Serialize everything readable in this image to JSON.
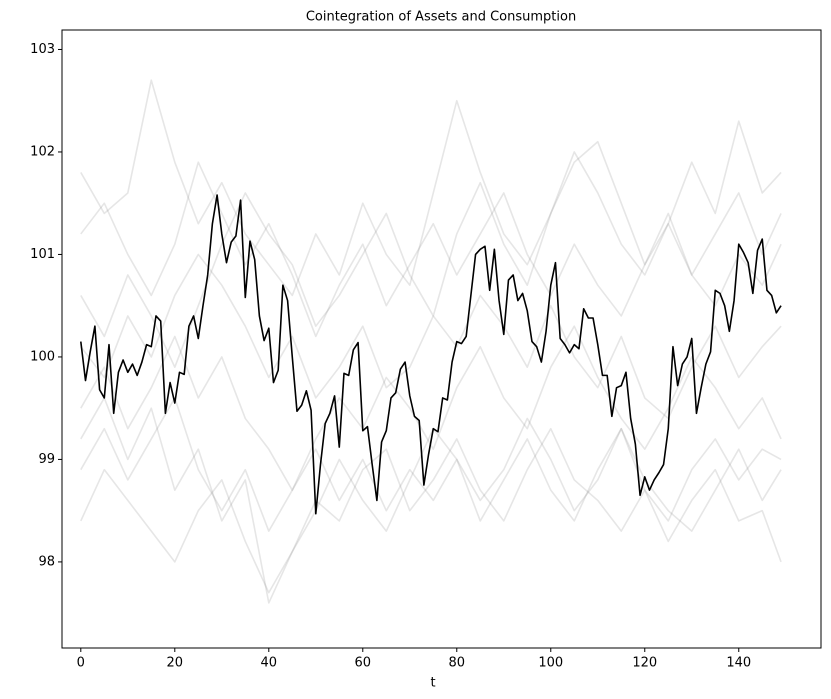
{
  "chart_data": {
    "type": "line",
    "title": "Cointegration of Assets and Consumption",
    "xlabel": "t",
    "xlim": [
      -4,
      157.5
    ],
    "ylim": [
      97.16,
      103.19
    ],
    "xticks": [
      0,
      20,
      40,
      60,
      80,
      100,
      120,
      140
    ],
    "yticks": [
      98,
      99,
      100,
      101,
      102,
      103
    ],
    "series": [
      {
        "color": "#808080",
        "opacity": 0.2,
        "x": [
          0,
          5,
          10,
          15,
          20,
          25,
          30,
          35,
          40,
          45,
          50,
          55,
          60,
          65,
          70,
          75,
          80,
          85,
          90,
          95,
          100,
          105,
          110,
          115,
          120,
          125,
          130,
          135,
          140,
          145,
          149
        ],
        "values": [
          101.8,
          101.4,
          101.6,
          102.7,
          101.9,
          101.3,
          101.7,
          101.2,
          100.9,
          100.6,
          101.2,
          100.8,
          101.5,
          101.0,
          100.7,
          101.6,
          102.5,
          101.8,
          101.2,
          100.9,
          101.4,
          102.0,
          101.6,
          101.1,
          100.8,
          101.3,
          101.9,
          101.4,
          102.3,
          101.6,
          101.8
        ]
      },
      {
        "color": "#808080",
        "opacity": 0.2,
        "x": [
          0,
          5,
          10,
          15,
          20,
          25,
          30,
          35,
          40,
          45,
          50,
          55,
          60,
          65,
          70,
          75,
          80,
          85,
          90,
          95,
          100,
          105,
          110,
          115,
          120,
          125,
          130,
          135,
          140,
          145,
          149
        ],
        "values": [
          98.4,
          98.9,
          98.6,
          98.3,
          98.0,
          98.5,
          98.8,
          98.2,
          97.7,
          98.1,
          98.6,
          98.4,
          98.9,
          99.1,
          98.5,
          98.8,
          99.2,
          98.7,
          98.4,
          98.9,
          99.3,
          98.8,
          98.6,
          98.3,
          98.7,
          98.2,
          98.6,
          98.9,
          98.4,
          98.5,
          98.0
        ]
      },
      {
        "color": "#808080",
        "opacity": 0.2,
        "x": [
          0,
          5,
          10,
          15,
          20,
          25,
          30,
          35,
          40,
          45,
          50,
          55,
          60,
          65,
          70,
          75,
          80,
          85,
          90,
          95,
          100,
          105,
          110,
          115,
          120,
          125,
          130,
          135,
          140,
          145,
          149
        ],
        "values": [
          100.6,
          100.2,
          100.8,
          100.4,
          99.9,
          100.5,
          101.1,
          101.6,
          101.2,
          100.9,
          100.3,
          100.6,
          101.0,
          101.4,
          100.8,
          100.4,
          101.2,
          101.7,
          101.1,
          100.7,
          101.4,
          101.9,
          102.1,
          101.5,
          100.9,
          101.3,
          100.8,
          101.2,
          101.6,
          101.0,
          101.4
        ]
      },
      {
        "color": "#808080",
        "opacity": 0.2,
        "x": [
          0,
          5,
          10,
          15,
          20,
          25,
          30,
          35,
          40,
          45,
          50,
          55,
          60,
          65,
          70,
          75,
          80,
          85,
          90,
          95,
          100,
          105,
          110,
          115,
          120,
          125,
          130,
          135,
          140,
          145,
          149
        ],
        "values": [
          99.2,
          99.6,
          99.0,
          99.5,
          98.7,
          99.1,
          98.4,
          98.8,
          97.6,
          98.1,
          98.5,
          99.0,
          98.6,
          98.3,
          98.8,
          99.3,
          99.0,
          98.6,
          98.9,
          99.4,
          99.0,
          98.5,
          98.8,
          99.3,
          98.7,
          98.4,
          98.9,
          99.2,
          98.8,
          99.1,
          99.0
        ]
      },
      {
        "color": "#808080",
        "opacity": 0.2,
        "x": [
          0,
          5,
          10,
          15,
          20,
          25,
          30,
          35,
          40,
          45,
          50,
          55,
          60,
          65,
          70,
          75,
          80,
          85,
          90,
          95,
          100,
          105,
          110,
          115,
          120,
          125,
          130,
          135,
          140,
          145,
          149
        ],
        "values": [
          100.1,
          99.8,
          100.4,
          100.0,
          100.6,
          101.0,
          100.7,
          100.3,
          99.8,
          100.2,
          99.6,
          99.9,
          100.3,
          99.7,
          99.9,
          100.4,
          100.1,
          100.6,
          100.3,
          99.9,
          100.5,
          100.0,
          99.7,
          100.2,
          99.6,
          99.4,
          99.9,
          100.3,
          99.8,
          100.1,
          100.3
        ]
      },
      {
        "color": "#808080",
        "opacity": 0.2,
        "x": [
          0,
          5,
          10,
          15,
          20,
          25,
          30,
          35,
          40,
          45,
          50,
          55,
          60,
          65,
          70,
          75,
          80,
          85,
          90,
          95,
          100,
          105,
          110,
          115,
          120,
          125,
          130,
          135,
          140,
          145,
          149
        ],
        "values": [
          99.5,
          99.9,
          99.3,
          99.7,
          100.2,
          99.6,
          100.0,
          99.4,
          99.1,
          98.7,
          99.2,
          99.6,
          99.3,
          99.8,
          99.5,
          99.1,
          99.7,
          100.1,
          99.6,
          99.3,
          99.9,
          100.3,
          99.8,
          99.4,
          99.1,
          99.5,
          100.0,
          99.7,
          99.3,
          99.6,
          99.2
        ]
      },
      {
        "color": "#808080",
        "opacity": 0.2,
        "x": [
          0,
          5,
          10,
          15,
          20,
          25,
          30,
          35,
          40,
          45,
          50,
          55,
          60,
          65,
          70,
          75,
          80,
          85,
          90,
          95,
          100,
          105,
          110,
          115,
          120,
          125,
          130,
          135,
          140,
          145,
          149
        ],
        "values": [
          101.2,
          101.5,
          101.0,
          100.6,
          101.1,
          101.9,
          101.4,
          100.9,
          101.3,
          100.8,
          100.2,
          100.7,
          101.1,
          100.5,
          100.9,
          101.3,
          100.8,
          101.2,
          101.6,
          101.0,
          100.6,
          101.1,
          100.7,
          100.4,
          100.9,
          101.4,
          100.8,
          100.5,
          101.0,
          100.7,
          101.1
        ]
      },
      {
        "color": "#808080",
        "opacity": 0.2,
        "x": [
          0,
          5,
          10,
          15,
          20,
          25,
          30,
          35,
          40,
          45,
          50,
          55,
          60,
          65,
          70,
          75,
          80,
          85,
          90,
          95,
          100,
          105,
          110,
          115,
          120,
          125,
          130,
          135,
          140,
          145,
          149
        ],
        "values": [
          98.9,
          99.3,
          98.8,
          99.2,
          99.6,
          98.9,
          98.5,
          98.9,
          98.3,
          98.7,
          99.1,
          98.6,
          99.0,
          98.5,
          98.9,
          98.6,
          99.0,
          98.4,
          98.8,
          99.2,
          98.7,
          98.4,
          98.9,
          99.3,
          98.8,
          98.5,
          98.3,
          98.7,
          99.1,
          98.6,
          98.9
        ]
      },
      {
        "color": "#000000",
        "opacity": 1,
        "x": [
          0,
          1,
          2,
          3,
          4,
          5,
          6,
          7,
          8,
          9,
          10,
          11,
          12,
          13,
          14,
          15,
          16,
          17,
          18,
          19,
          20,
          21,
          22,
          23,
          24,
          25,
          26,
          27,
          28,
          29,
          30,
          31,
          32,
          33,
          34,
          35,
          36,
          37,
          38,
          39,
          40,
          41,
          42,
          43,
          44,
          45,
          46,
          47,
          48,
          49,
          50,
          51,
          52,
          53,
          54,
          55,
          56,
          57,
          58,
          59,
          60,
          61,
          62,
          63,
          64,
          65,
          66,
          67,
          68,
          69,
          70,
          71,
          72,
          73,
          74,
          75,
          76,
          77,
          78,
          79,
          80,
          81,
          82,
          83,
          84,
          85,
          86,
          87,
          88,
          89,
          90,
          91,
          92,
          93,
          94,
          95,
          96,
          97,
          98,
          99,
          100,
          101,
          102,
          103,
          104,
          105,
          106,
          107,
          108,
          109,
          110,
          111,
          112,
          113,
          114,
          115,
          116,
          117,
          118,
          119,
          120,
          121,
          122,
          123,
          124,
          125,
          126,
          127,
          128,
          129,
          130,
          131,
          132,
          133,
          134,
          135,
          136,
          137,
          138,
          139,
          140,
          141,
          142,
          143,
          144,
          145,
          146,
          147,
          148,
          149
        ],
        "values": [
          100.15,
          99.77,
          100.05,
          100.3,
          99.68,
          99.6,
          100.12,
          99.45,
          99.85,
          99.97,
          99.85,
          99.93,
          99.82,
          99.95,
          100.12,
          100.1,
          100.4,
          100.35,
          99.45,
          99.75,
          99.55,
          99.85,
          99.83,
          100.3,
          100.4,
          100.18,
          100.5,
          100.8,
          101.3,
          101.58,
          101.2,
          100.92,
          101.12,
          101.18,
          101.53,
          100.58,
          101.13,
          100.95,
          100.4,
          100.16,
          100.28,
          99.75,
          99.87,
          100.7,
          100.55,
          100.0,
          99.47,
          99.53,
          99.67,
          99.48,
          98.47,
          98.95,
          99.35,
          99.45,
          99.62,
          99.12,
          99.84,
          99.82,
          100.07,
          100.14,
          99.28,
          99.32,
          98.95,
          98.6,
          99.17,
          99.28,
          99.6,
          99.65,
          99.88,
          99.95,
          99.62,
          99.42,
          99.38,
          98.75,
          99.05,
          99.3,
          99.27,
          99.6,
          99.58,
          99.95,
          100.15,
          100.13,
          100.2,
          100.6,
          101.0,
          101.05,
          101.08,
          100.65,
          101.05,
          100.55,
          100.22,
          100.75,
          100.8,
          100.55,
          100.62,
          100.45,
          100.15,
          100.1,
          99.95,
          100.25,
          100.7,
          100.92,
          100.18,
          100.12,
          100.04,
          100.12,
          100.08,
          100.47,
          100.38,
          100.38,
          100.12,
          99.82,
          99.82,
          99.42,
          99.7,
          99.72,
          99.85,
          99.4,
          99.15,
          98.65,
          98.83,
          98.7,
          98.8,
          98.87,
          98.95,
          99.3,
          100.1,
          99.72,
          99.93,
          100.0,
          100.18,
          99.45,
          99.7,
          99.93,
          100.05,
          100.65,
          100.62,
          100.5,
          100.25,
          100.55,
          101.1,
          101.02,
          100.92,
          100.62,
          101.04,
          101.15,
          100.65,
          100.6,
          100.43,
          100.5
        ]
      }
    ]
  }
}
